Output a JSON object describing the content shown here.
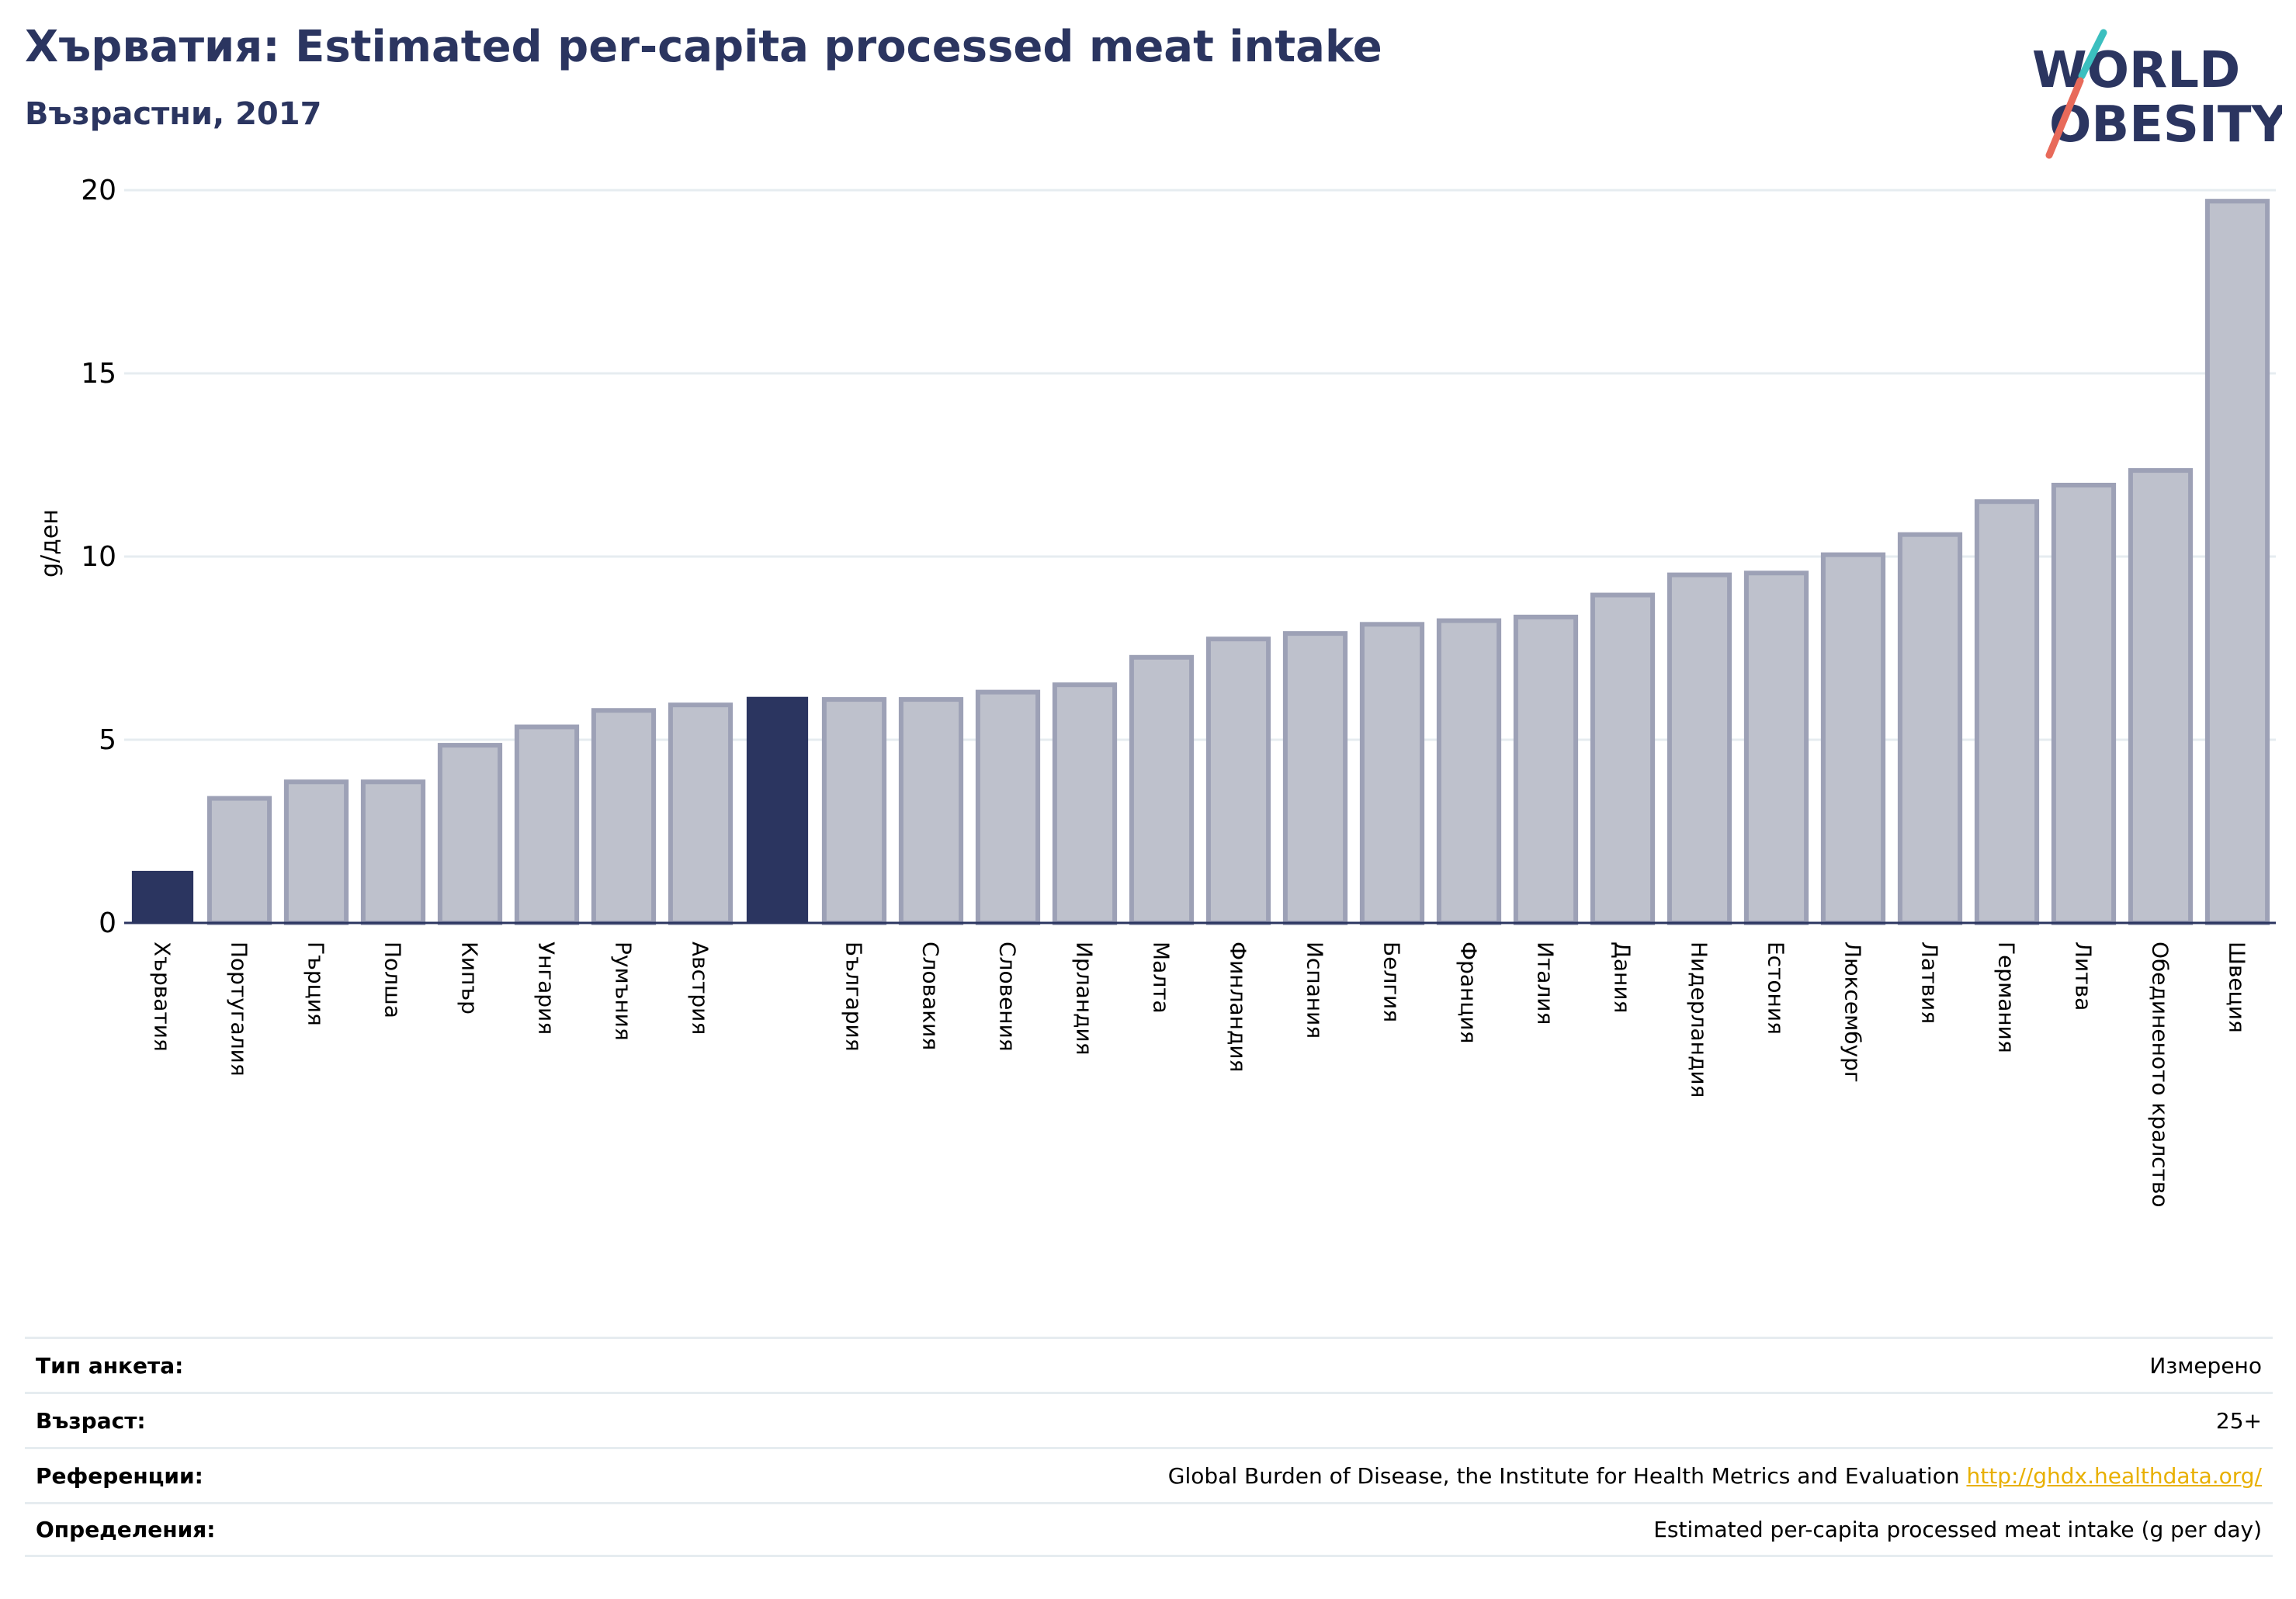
{
  "header": {
    "title": "Хърватия: Estimated per-capita processed meat intake",
    "subtitle": "Възрастни, 2017"
  },
  "logo": {
    "line1": "WORLD",
    "line2": "OBESITY"
  },
  "colors": {
    "highlight": "#2b3560",
    "bar": "#bec1cc",
    "bar_stroke": "#9da1b6",
    "grid": "#e6ecf0",
    "title": "#2b3560"
  },
  "chart_data": {
    "type": "bar",
    "ylabel": "g/ден",
    "ylim": [
      0,
      20
    ],
    "yticks": [
      0,
      5,
      10,
      15,
      20
    ],
    "grid": true,
    "categories": [
      "Хърватия",
      "Португалия",
      "Гърция",
      "Полша",
      "Кипър",
      "Унгария",
      "Румъния",
      "Австрия",
      "",
      "България",
      "Словакия",
      "Словения",
      "Ирландия",
      "Малта",
      "Финландия",
      "Испания",
      "Белгия",
      "Франция",
      "Италия",
      "Дания",
      "Нидерландия",
      "Естония",
      "Люксембург",
      "Латвия",
      "Германия",
      "Литва",
      "Обединеното кралство",
      "Швеция"
    ],
    "values": [
      1.4,
      3.4,
      3.85,
      3.85,
      4.85,
      5.35,
      5.8,
      5.95,
      6.15,
      6.1,
      6.1,
      6.3,
      6.5,
      7.25,
      7.75,
      7.9,
      8.15,
      8.25,
      8.35,
      8.95,
      9.5,
      9.55,
      10.05,
      10.6,
      11.5,
      11.95,
      12.35,
      19.7
    ],
    "highlighted": [
      0,
      8
    ]
  },
  "footer": {
    "rows": [
      {
        "label": "Тип анкета:",
        "value": "Измерено"
      },
      {
        "label": "Възраст:",
        "value": "25+"
      },
      {
        "label": "Референции:",
        "value": "Global Burden of Disease, the Institute for Health Metrics and Evaluation",
        "link": "http://ghdx.healthdata.org/"
      },
      {
        "label": "Определения:",
        "value": "Estimated per-capita processed meat intake (g per day)"
      }
    ]
  }
}
